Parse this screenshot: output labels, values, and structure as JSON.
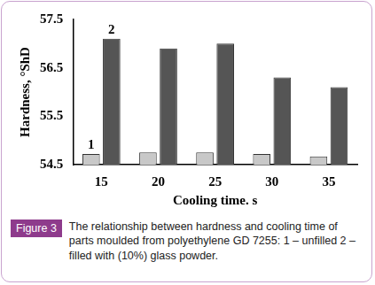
{
  "chart_data": {
    "type": "bar",
    "x_label": "Cooling time. s",
    "y_label": "Hardness, °ShD",
    "figure_label": "Figure 3",
    "caption": "The relationship between hardness and cooling time of parts moulded from polyethylene GD 7255: 1 – unfilled 2 – filled with (10%) glass powder.",
    "categories": [
      "15",
      "20",
      "25",
      "30",
      "35"
    ],
    "series": [
      {
        "name": "1",
        "color": "#c8c8c8",
        "values": [
          54.72,
          54.75,
          54.75,
          54.72,
          54.67
        ]
      },
      {
        "name": "2",
        "color": "#555555",
        "values": [
          57.1,
          56.9,
          57.0,
          56.3,
          56.1
        ]
      }
    ],
    "ylim": [
      54.5,
      57.5
    ],
    "yticks": [
      54.5,
      55.5,
      56.5,
      57.5
    ],
    "grid": false
  }
}
